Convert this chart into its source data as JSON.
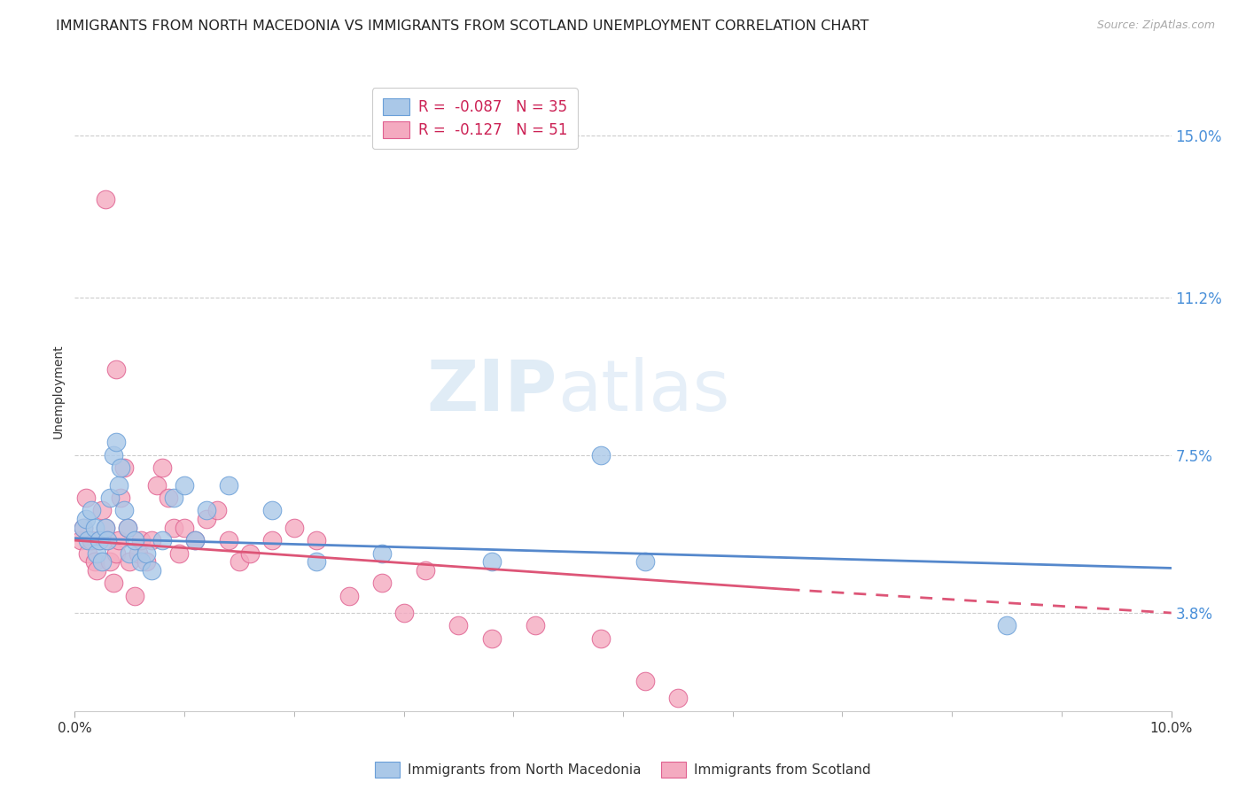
{
  "title": "IMMIGRANTS FROM NORTH MACEDONIA VS IMMIGRANTS FROM SCOTLAND UNEMPLOYMENT CORRELATION CHART",
  "source": "Source: ZipAtlas.com",
  "ylabel": "Unemployment",
  "y_ticks": [
    3.8,
    7.5,
    11.2,
    15.0
  ],
  "y_tick_labels": [
    "3.8%",
    "7.5%",
    "11.2%",
    "15.0%"
  ],
  "xlim": [
    0.0,
    10.0
  ],
  "ylim": [
    1.5,
    16.5
  ],
  "watermark1": "ZIP",
  "watermark2": "atlas",
  "legend_entries": [
    {
      "r_val": "-0.087",
      "n_val": "35",
      "color": "#aac8e8",
      "edge_color": "#6a9fd8"
    },
    {
      "r_val": "-0.127",
      "n_val": "51",
      "color": "#f4aac0",
      "edge_color": "#e06090"
    }
  ],
  "series": [
    {
      "name": "Immigrants from North Macedonia",
      "color": "#aac8e8",
      "edge_color": "#6a9fd8",
      "x": [
        0.08,
        0.1,
        0.12,
        0.15,
        0.18,
        0.2,
        0.22,
        0.25,
        0.28,
        0.3,
        0.32,
        0.35,
        0.38,
        0.4,
        0.42,
        0.45,
        0.48,
        0.5,
        0.55,
        0.6,
        0.65,
        0.7,
        0.8,
        0.9,
        1.0,
        1.1,
        1.2,
        1.4,
        1.8,
        2.2,
        2.8,
        3.8,
        4.8,
        5.2,
        8.5
      ],
      "y": [
        5.8,
        6.0,
        5.5,
        6.2,
        5.8,
        5.2,
        5.5,
        5.0,
        5.8,
        5.5,
        6.5,
        7.5,
        7.8,
        6.8,
        7.2,
        6.2,
        5.8,
        5.2,
        5.5,
        5.0,
        5.2,
        4.8,
        5.5,
        6.5,
        6.8,
        5.5,
        6.2,
        6.8,
        6.2,
        5.0,
        5.2,
        5.0,
        7.5,
        5.0,
        3.5
      ]
    },
    {
      "name": "Immigrants from Scotland",
      "color": "#f4aac0",
      "edge_color": "#e06090",
      "x": [
        0.05,
        0.08,
        0.1,
        0.12,
        0.15,
        0.18,
        0.2,
        0.22,
        0.25,
        0.28,
        0.3,
        0.32,
        0.35,
        0.38,
        0.4,
        0.42,
        0.45,
        0.48,
        0.5,
        0.55,
        0.58,
        0.6,
        0.65,
        0.7,
        0.75,
        0.8,
        0.85,
        0.9,
        0.95,
        1.0,
        1.1,
        1.2,
        1.3,
        1.4,
        1.5,
        1.6,
        1.8,
        2.0,
        2.2,
        2.5,
        2.8,
        3.0,
        3.2,
        3.5,
        3.8,
        4.2,
        4.8,
        5.2,
        5.5,
        0.28,
        0.38
      ],
      "y": [
        5.5,
        5.8,
        6.5,
        5.2,
        5.5,
        5.0,
        4.8,
        5.5,
        6.2,
        5.8,
        5.5,
        5.0,
        4.5,
        5.2,
        5.5,
        6.5,
        7.2,
        5.8,
        5.0,
        4.2,
        5.2,
        5.5,
        5.0,
        5.5,
        6.8,
        7.2,
        6.5,
        5.8,
        5.2,
        5.8,
        5.5,
        6.0,
        6.2,
        5.5,
        5.0,
        5.2,
        5.5,
        5.8,
        5.5,
        4.2,
        4.5,
        3.8,
        4.8,
        3.5,
        3.2,
        3.5,
        3.2,
        2.2,
        1.8,
        13.5,
        9.5
      ]
    }
  ],
  "trend_blue": {
    "x_start": 0.0,
    "x_end": 10.0,
    "y_start": 5.55,
    "y_end": 4.85,
    "color": "#5588cc",
    "linewidth": 2.0
  },
  "trend_pink": {
    "x_start": 0.0,
    "x_end": 6.5,
    "y_start": 5.5,
    "y_end": 4.35,
    "color": "#dd5577",
    "linewidth": 2.0,
    "dash_x_start": 6.5,
    "dash_x_end": 10.0,
    "dash_y_start": 4.35,
    "dash_y_end": 3.8
  },
  "background_color": "#ffffff",
  "grid_color": "#cccccc",
  "title_fontsize": 11.5,
  "tick_fontsize": 11,
  "right_tick_color": "#4a90d9",
  "source_color": "#aaaaaa"
}
